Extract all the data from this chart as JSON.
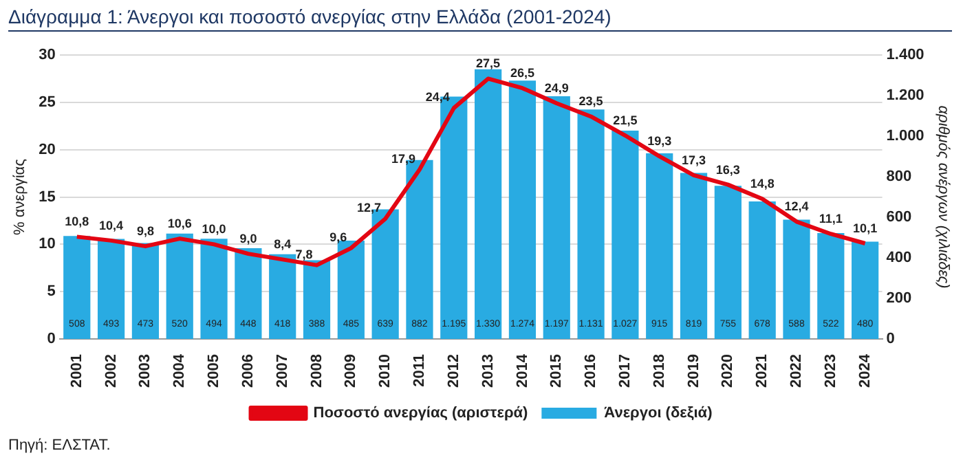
{
  "chart_data": {
    "type": "bar",
    "title": "Διάγραμμα 1: Άνεργοι και ποσοστό ανεργίας στην Ελλάδα (2001-2024)",
    "ylabel": "% ανεργίας",
    "y2label": "αριθμός ανέργων (χιλιάδες)",
    "annotations": [
      "Πηγή: ΕΛΣΤΑΤ."
    ],
    "categories": [
      "2001",
      "2002",
      "2003",
      "2004",
      "2005",
      "2006",
      "2007",
      "2008",
      "2009",
      "2010",
      "2011",
      "2012",
      "2013",
      "2014",
      "2015",
      "2016",
      "2017",
      "2018",
      "2019",
      "2020",
      "2021",
      "2022",
      "2023",
      "2024"
    ],
    "series": [
      {
        "name": "Άνεργοι (δεξιά)",
        "axis": "y2",
        "color": "#29abe2",
        "values": [
          508,
          493,
          473,
          520,
          494,
          448,
          418,
          388,
          485,
          639,
          882,
          1195,
          1330,
          1274,
          1197,
          1131,
          1027,
          915,
          819,
          755,
          678,
          588,
          522,
          480
        ],
        "value_labels": [
          "508",
          "493",
          "473",
          "520",
          "494",
          "448",
          "418",
          "388",
          "485",
          "639",
          "882",
          "1.195",
          "1.330",
          "1.274",
          "1.197",
          "1.131",
          "1.027",
          "915",
          "819",
          "755",
          "678",
          "588",
          "522",
          "480"
        ]
      },
      {
        "name": "Ποσοστό ανεργίας (αριστερά)",
        "type": "line",
        "color": "#e30613",
        "values": [
          10.8,
          10.4,
          9.8,
          10.6,
          10.0,
          9.0,
          8.4,
          7.8,
          9.6,
          12.7,
          17.9,
          24.4,
          27.5,
          26.5,
          24.9,
          23.5,
          21.5,
          19.3,
          17.3,
          16.3,
          14.8,
          12.4,
          11.1,
          10.1
        ],
        "value_labels": [
          "10,8",
          "10,4",
          "9,8",
          "10,6",
          "10,0",
          "9,0",
          "8,4",
          "7,8",
          "9,6",
          "12,7",
          "17,9",
          "24,4",
          "27,5",
          "26,5",
          "24,9",
          "23,5",
          "21,5",
          "19,3",
          "17,3",
          "16,3",
          "14,8",
          "12,4",
          "11,1",
          "10,1"
        ]
      }
    ],
    "ylim": [
      0,
      30
    ],
    "yticks": [
      0,
      5,
      10,
      15,
      20,
      25,
      30
    ],
    "y2lim": [
      0,
      1400
    ],
    "y2ticks": [
      0,
      {
        "value": 200,
        "label": "200"
      },
      {
        "value": 400,
        "label": "400"
      },
      {
        "value": 600,
        "label": "600"
      },
      {
        "value": 800,
        "label": "800"
      },
      {
        "value": 1000,
        "label": "1.000"
      },
      {
        "value": 1200,
        "label": "1.200"
      },
      {
        "value": 1400,
        "label": "1.400"
      }
    ],
    "grid": "y",
    "legend": "bottom",
    "marker": "none",
    "line_style": "solid"
  }
}
